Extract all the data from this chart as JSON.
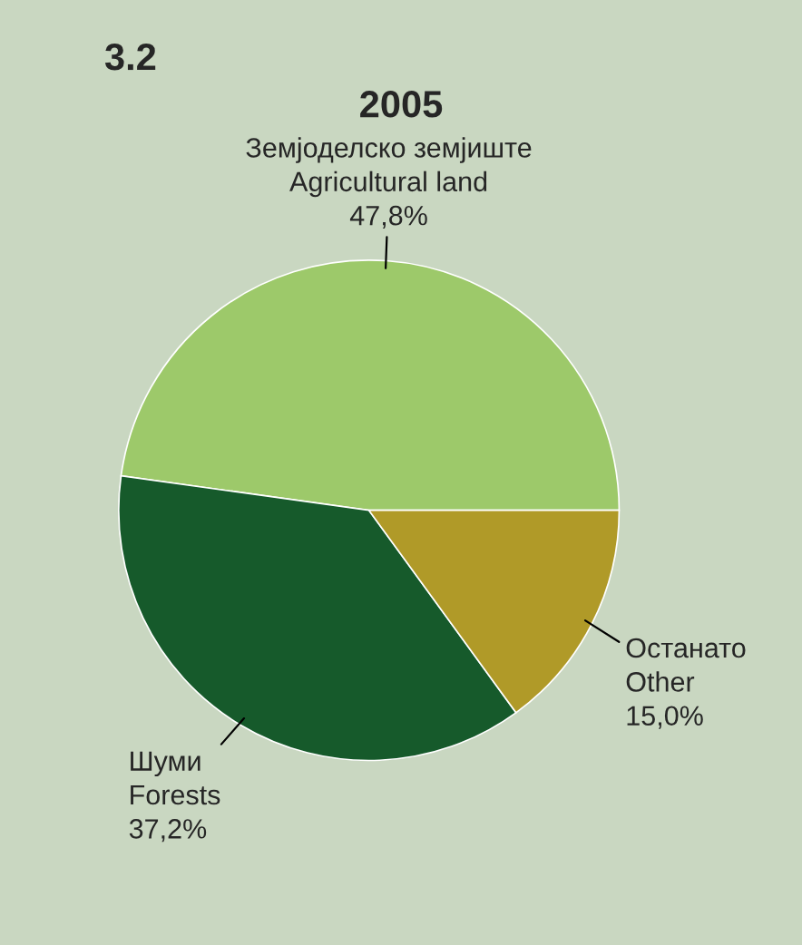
{
  "chart_data": {
    "type": "pie",
    "title": "2005",
    "annotations": [
      "3.2"
    ],
    "categories": [
      "Земјоделско земјиште\nAgricultural land",
      "Шуми\nForests",
      "Останато\nOther"
    ],
    "values": [
      47.8,
      37.2,
      15.0
    ],
    "value_labels": [
      "47,8%",
      "37,2%",
      "15,0%"
    ],
    "colors": [
      "#9dc96a",
      "#165a2b",
      "#b09a28"
    ],
    "legend": false
  }
}
